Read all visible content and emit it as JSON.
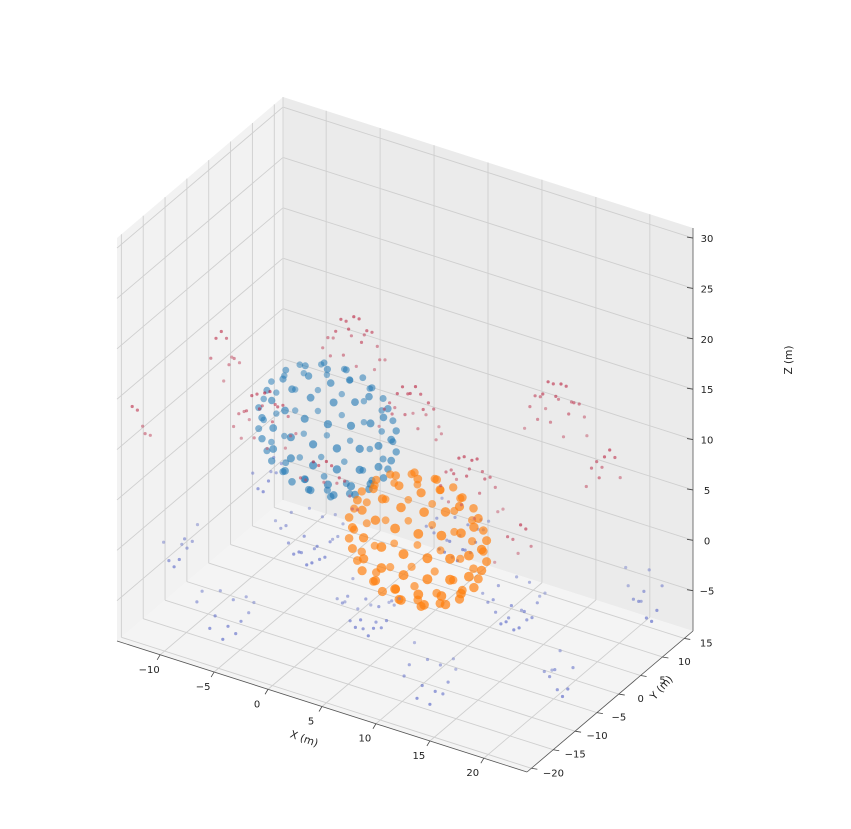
{
  "chart_data": {
    "type": "scatter",
    "projection": "3d",
    "title": "",
    "xlabel": "X (m)",
    "ylabel": "Y (m)",
    "zlabel": "Z (m)",
    "xlim": [
      -14,
      24
    ],
    "ylim": [
      -21,
      17
    ],
    "zlim": [
      -9,
      31
    ],
    "x_ticks": [
      -10,
      -5,
      0,
      5,
      10,
      15,
      20
    ],
    "y_ticks": [
      -20,
      -15,
      -10,
      -5,
      0,
      5,
      10,
      15
    ],
    "z_ticks": [
      -5,
      0,
      5,
      10,
      15,
      20,
      25,
      30
    ],
    "grid": true,
    "legend": "none",
    "colors": {
      "blue": "#1f77b4",
      "orange": "#ff7f0e",
      "low_cmap": "#3b4cc0",
      "mid_cmap": "#aec7f8",
      "high_cmap": "#d62728",
      "pane_back": "#ebebeb",
      "pane_side": "#f2f2f2",
      "pane_floor": "#f4f4f4"
    },
    "series": [
      {
        "kind": "background_surface",
        "colormap": "coolwarm",
        "x_range": [
          -13,
          23
        ],
        "y_range": [
          -20,
          16
        ],
        "z_min": -6,
        "z_max": 15
      },
      {
        "kind": "sphere_1",
        "color": "#1f77b4",
        "center": [
          -3,
          0,
          8
        ],
        "radius": 6
      },
      {
        "kind": "sphere_2",
        "color": "#ff7f0e",
        "center": [
          7,
          -4,
          2
        ],
        "radius": 6
      }
    ]
  }
}
